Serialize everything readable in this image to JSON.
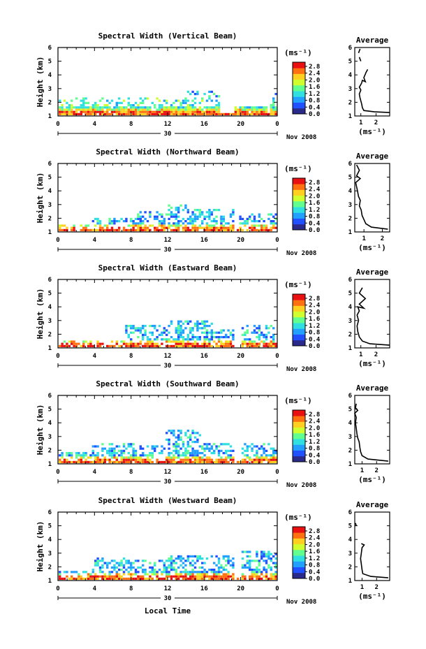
{
  "chart_data": {
    "type": "heatmap",
    "x_label": "Local Time",
    "date_label": "30",
    "month_label": "Nov 2008",
    "x_ticks": [
      "0",
      "4",
      "8",
      "12",
      "16",
      "20",
      "0"
    ],
    "x_range": [
      0,
      24
    ],
    "y_label": "Height (km)",
    "y_ticks": [
      "1",
      "2",
      "3",
      "4",
      "5",
      "6"
    ],
    "y_range": [
      1,
      6
    ],
    "colorbar": {
      "unit": "(ms⁻¹)",
      "tick_labels_width_scale": [
        "2.8",
        "2.4",
        "2.0",
        "1.6",
        "1.2",
        "0.8",
        "0.4",
        "0.0"
      ],
      "colormap": [
        "#2a2a8a",
        "#2050ff",
        "#22a0ff",
        "#30e0e0",
        "#60ff90",
        "#d0ff30",
        "#ffd020",
        "#ff7010",
        "#e81010"
      ]
    },
    "panels": [
      {
        "title": "Spectral Width (Vertical Beam)",
        "cbar_ticks": [
          "2.8",
          "2.4",
          "2.0",
          "1.6",
          "1.2",
          "0.8",
          "0.4",
          "0.0"
        ],
        "average": {
          "title": "Average",
          "xlabel": "(ms⁻¹)",
          "x_ticks": [
            "1",
            "2"
          ],
          "x_range": [
            0.6,
            2.9
          ],
          "y_ticks": [
            "1",
            "2",
            "3",
            "4",
            "5",
            "6"
          ],
          "profile": [
            [
              2.9,
              1.25
            ],
            [
              1.9,
              1.3
            ],
            [
              1.2,
              1.4
            ],
            [
              1.1,
              1.6
            ],
            [
              1.05,
              1.9
            ],
            [
              0.95,
              2.3
            ],
            [
              0.9,
              2.6
            ],
            [
              1.0,
              2.9
            ],
            [
              0.9,
              3.1
            ],
            [
              1.05,
              3.4
            ],
            [
              1.1,
              3.6
            ],
            [
              1.3,
              3.5
            ],
            [
              1.2,
              3.8
            ],
            [
              1.35,
              4.2
            ],
            [
              1.45,
              4.4
            ]
          ],
          "profile_upper": [
            [
              1.0,
              5.0
            ],
            [
              0.9,
              5.3
            ],
            [
              0.85,
              5.6
            ],
            [
              0.95,
              5.9
            ]
          ]
        }
      },
      {
        "title": "Spectral Width (Northward Beam)",
        "cbar_ticks": [
          "2.8",
          "2.4",
          "2.0",
          "1.6",
          "1.2",
          "0.8",
          "0.4",
          "0.0"
        ],
        "average": {
          "title": "Average",
          "xlabel": "(ms⁻¹)",
          "x_ticks": [
            "1",
            "2"
          ],
          "x_range": [
            0.5,
            2.4
          ],
          "y_ticks": [
            "1",
            "2",
            "3",
            "4",
            "5",
            "6"
          ],
          "profile": [
            [
              2.3,
              1.2
            ],
            [
              1.4,
              1.35
            ],
            [
              1.1,
              1.6
            ],
            [
              1.0,
              1.9
            ],
            [
              0.9,
              2.2
            ],
            [
              0.85,
              2.6
            ],
            [
              0.75,
              2.9
            ],
            [
              0.8,
              3.3
            ],
            [
              0.7,
              3.6
            ],
            [
              0.65,
              4.0
            ],
            [
              0.6,
              4.3
            ],
            [
              0.55,
              4.6
            ],
            [
              0.8,
              4.9
            ],
            [
              0.6,
              5.1
            ],
            [
              0.75,
              5.5
            ],
            [
              0.6,
              5.9
            ]
          ],
          "profile_upper": []
        }
      },
      {
        "title": "Spectral Width (Eastward Beam)",
        "cbar_ticks": [
          "2.8",
          "2.4",
          "2.0",
          "1.6",
          "1.2",
          "0.8",
          "0.4",
          "0.0"
        ],
        "average": {
          "title": "Average",
          "xlabel": "(ms⁻¹)",
          "x_ticks": [
            "1",
            "2"
          ],
          "x_range": [
            0.6,
            2.9
          ],
          "y_ticks": [
            "1",
            "2",
            "3",
            "4",
            "5",
            "6"
          ],
          "profile": [
            [
              2.9,
              1.2
            ],
            [
              1.6,
              1.3
            ],
            [
              1.1,
              1.5
            ],
            [
              0.9,
              1.8
            ],
            [
              0.8,
              2.2
            ],
            [
              0.75,
              2.6
            ],
            [
              0.85,
              3.0
            ],
            [
              0.75,
              3.4
            ],
            [
              0.9,
              3.7
            ],
            [
              0.8,
              4.0
            ],
            [
              1.2,
              3.9
            ],
            [
              0.9,
              4.2
            ],
            [
              1.3,
              4.6
            ],
            [
              0.9,
              5.0
            ],
            [
              1.1,
              5.4
            ]
          ],
          "profile_upper": []
        }
      },
      {
        "title": "Spectral Width (Southward Beam)",
        "cbar_ticks": [
          "2.8",
          "2.4",
          "2.0",
          "1.6",
          "1.2",
          "0.8",
          "0.4",
          "0.0"
        ],
        "average": {
          "title": "Average",
          "xlabel": "(ms⁻¹)",
          "x_ticks": [
            "1",
            "2"
          ],
          "x_range": [
            0.5,
            2.9
          ],
          "y_ticks": [
            "1",
            "2",
            "3",
            "4",
            "5",
            "6"
          ],
          "profile": [
            [
              2.8,
              1.2
            ],
            [
              1.4,
              1.35
            ],
            [
              1.0,
              1.6
            ],
            [
              0.9,
              1.9
            ],
            [
              0.85,
              2.2
            ],
            [
              0.8,
              2.6
            ],
            [
              0.7,
              2.9
            ],
            [
              0.65,
              3.2
            ],
            [
              0.6,
              3.6
            ],
            [
              0.55,
              4.0
            ],
            [
              0.6,
              4.4
            ],
            [
              0.5,
              4.7
            ],
            [
              0.7,
              4.9
            ],
            [
              0.55,
              5.1
            ],
            [
              0.6,
              5.4
            ]
          ],
          "profile_upper": []
        }
      },
      {
        "title": "Spectral Width (Westward Beam)",
        "cbar_ticks": [
          "2.8",
          "2.4",
          "2.0",
          "1.6",
          "1.2",
          "0.8",
          "0.4",
          "0.0"
        ],
        "average": {
          "title": "Average",
          "xlabel": "(ms⁻¹)",
          "x_ticks": [
            "1",
            "2"
          ],
          "x_range": [
            0.5,
            2.9
          ],
          "y_ticks": [
            "1",
            "2",
            "3",
            "4",
            "5",
            "6"
          ],
          "profile": [
            [
              2.8,
              1.2
            ],
            [
              1.6,
              1.3
            ],
            [
              1.05,
              1.5
            ],
            [
              1.0,
              1.8
            ],
            [
              0.95,
              2.2
            ],
            [
              0.9,
              2.6
            ],
            [
              0.95,
              3.0
            ],
            [
              1.0,
              3.4
            ],
            [
              1.15,
              3.6
            ],
            [
              0.95,
              3.7
            ]
          ],
          "profile_upper": [
            [
              0.6,
              5.0
            ],
            [
              0.55,
              5.2
            ]
          ]
        }
      }
    ]
  }
}
